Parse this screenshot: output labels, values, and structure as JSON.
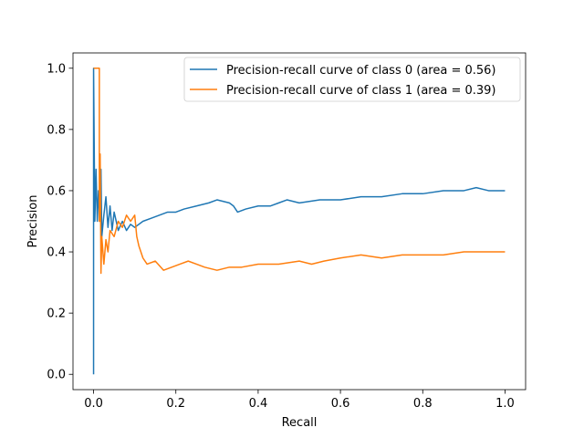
{
  "chart_data": {
    "type": "line",
    "title": "",
    "xlabel": "Recall",
    "ylabel": "Precision",
    "xlim": [
      -0.05,
      1.05
    ],
    "ylim": [
      -0.05,
      1.05
    ],
    "xticks": [
      0.0,
      0.2,
      0.4,
      0.6,
      0.8,
      1.0
    ],
    "yticks": [
      0.0,
      0.2,
      0.4,
      0.6,
      0.8,
      1.0
    ],
    "xtick_labels": [
      "0.0",
      "0.2",
      "0.4",
      "0.6",
      "0.8",
      "1.0"
    ],
    "ytick_labels": [
      "0.0",
      "0.2",
      "0.4",
      "0.6",
      "0.8",
      "1.0"
    ],
    "grid": false,
    "legend_position": "top-right",
    "series": [
      {
        "name": "Precision-recall curve of class 0 (area = 0.56)",
        "color": "#1f77b4",
        "points": [
          [
            0.0,
            0.0
          ],
          [
            0.0,
            1.0
          ],
          [
            0.003,
            0.5
          ],
          [
            0.006,
            0.67
          ],
          [
            0.009,
            0.5
          ],
          [
            0.012,
            0.6
          ],
          [
            0.015,
            0.5
          ],
          [
            0.018,
            0.67
          ],
          [
            0.02,
            0.45
          ],
          [
            0.025,
            0.52
          ],
          [
            0.03,
            0.58
          ],
          [
            0.035,
            0.48
          ],
          [
            0.04,
            0.55
          ],
          [
            0.045,
            0.47
          ],
          [
            0.05,
            0.53
          ],
          [
            0.06,
            0.47
          ],
          [
            0.07,
            0.5
          ],
          [
            0.08,
            0.47
          ],
          [
            0.09,
            0.49
          ],
          [
            0.1,
            0.48
          ],
          [
            0.12,
            0.5
          ],
          [
            0.14,
            0.51
          ],
          [
            0.16,
            0.52
          ],
          [
            0.18,
            0.53
          ],
          [
            0.2,
            0.53
          ],
          [
            0.22,
            0.54
          ],
          [
            0.25,
            0.55
          ],
          [
            0.28,
            0.56
          ],
          [
            0.3,
            0.57
          ],
          [
            0.33,
            0.56
          ],
          [
            0.34,
            0.55
          ],
          [
            0.35,
            0.53
          ],
          [
            0.37,
            0.54
          ],
          [
            0.4,
            0.55
          ],
          [
            0.43,
            0.55
          ],
          [
            0.45,
            0.56
          ],
          [
            0.47,
            0.57
          ],
          [
            0.5,
            0.56
          ],
          [
            0.55,
            0.57
          ],
          [
            0.6,
            0.57
          ],
          [
            0.65,
            0.58
          ],
          [
            0.7,
            0.58
          ],
          [
            0.75,
            0.59
          ],
          [
            0.8,
            0.59
          ],
          [
            0.85,
            0.6
          ],
          [
            0.9,
            0.6
          ],
          [
            0.93,
            0.61
          ],
          [
            0.96,
            0.6
          ],
          [
            1.0,
            0.6
          ]
        ]
      },
      {
        "name": "Precision-recall curve of class 1 (area = 0.39)",
        "color": "#ff7f0e",
        "points": [
          [
            0.0,
            1.0
          ],
          [
            0.014,
            1.0
          ],
          [
            0.014,
            0.5
          ],
          [
            0.016,
            0.72
          ],
          [
            0.018,
            0.33
          ],
          [
            0.02,
            0.45
          ],
          [
            0.025,
            0.36
          ],
          [
            0.03,
            0.44
          ],
          [
            0.035,
            0.4
          ],
          [
            0.04,
            0.47
          ],
          [
            0.05,
            0.45
          ],
          [
            0.06,
            0.5
          ],
          [
            0.07,
            0.48
          ],
          [
            0.08,
            0.52
          ],
          [
            0.09,
            0.5
          ],
          [
            0.1,
            0.52
          ],
          [
            0.105,
            0.45
          ],
          [
            0.11,
            0.42
          ],
          [
            0.12,
            0.38
          ],
          [
            0.13,
            0.36
          ],
          [
            0.15,
            0.37
          ],
          [
            0.17,
            0.34
          ],
          [
            0.19,
            0.35
          ],
          [
            0.21,
            0.36
          ],
          [
            0.23,
            0.37
          ],
          [
            0.25,
            0.36
          ],
          [
            0.27,
            0.35
          ],
          [
            0.3,
            0.34
          ],
          [
            0.33,
            0.35
          ],
          [
            0.36,
            0.35
          ],
          [
            0.4,
            0.36
          ],
          [
            0.45,
            0.36
          ],
          [
            0.5,
            0.37
          ],
          [
            0.53,
            0.36
          ],
          [
            0.56,
            0.37
          ],
          [
            0.6,
            0.38
          ],
          [
            0.65,
            0.39
          ],
          [
            0.7,
            0.38
          ],
          [
            0.75,
            0.39
          ],
          [
            0.8,
            0.39
          ],
          [
            0.85,
            0.39
          ],
          [
            0.9,
            0.4
          ],
          [
            0.95,
            0.4
          ],
          [
            1.0,
            0.4
          ]
        ]
      }
    ]
  }
}
